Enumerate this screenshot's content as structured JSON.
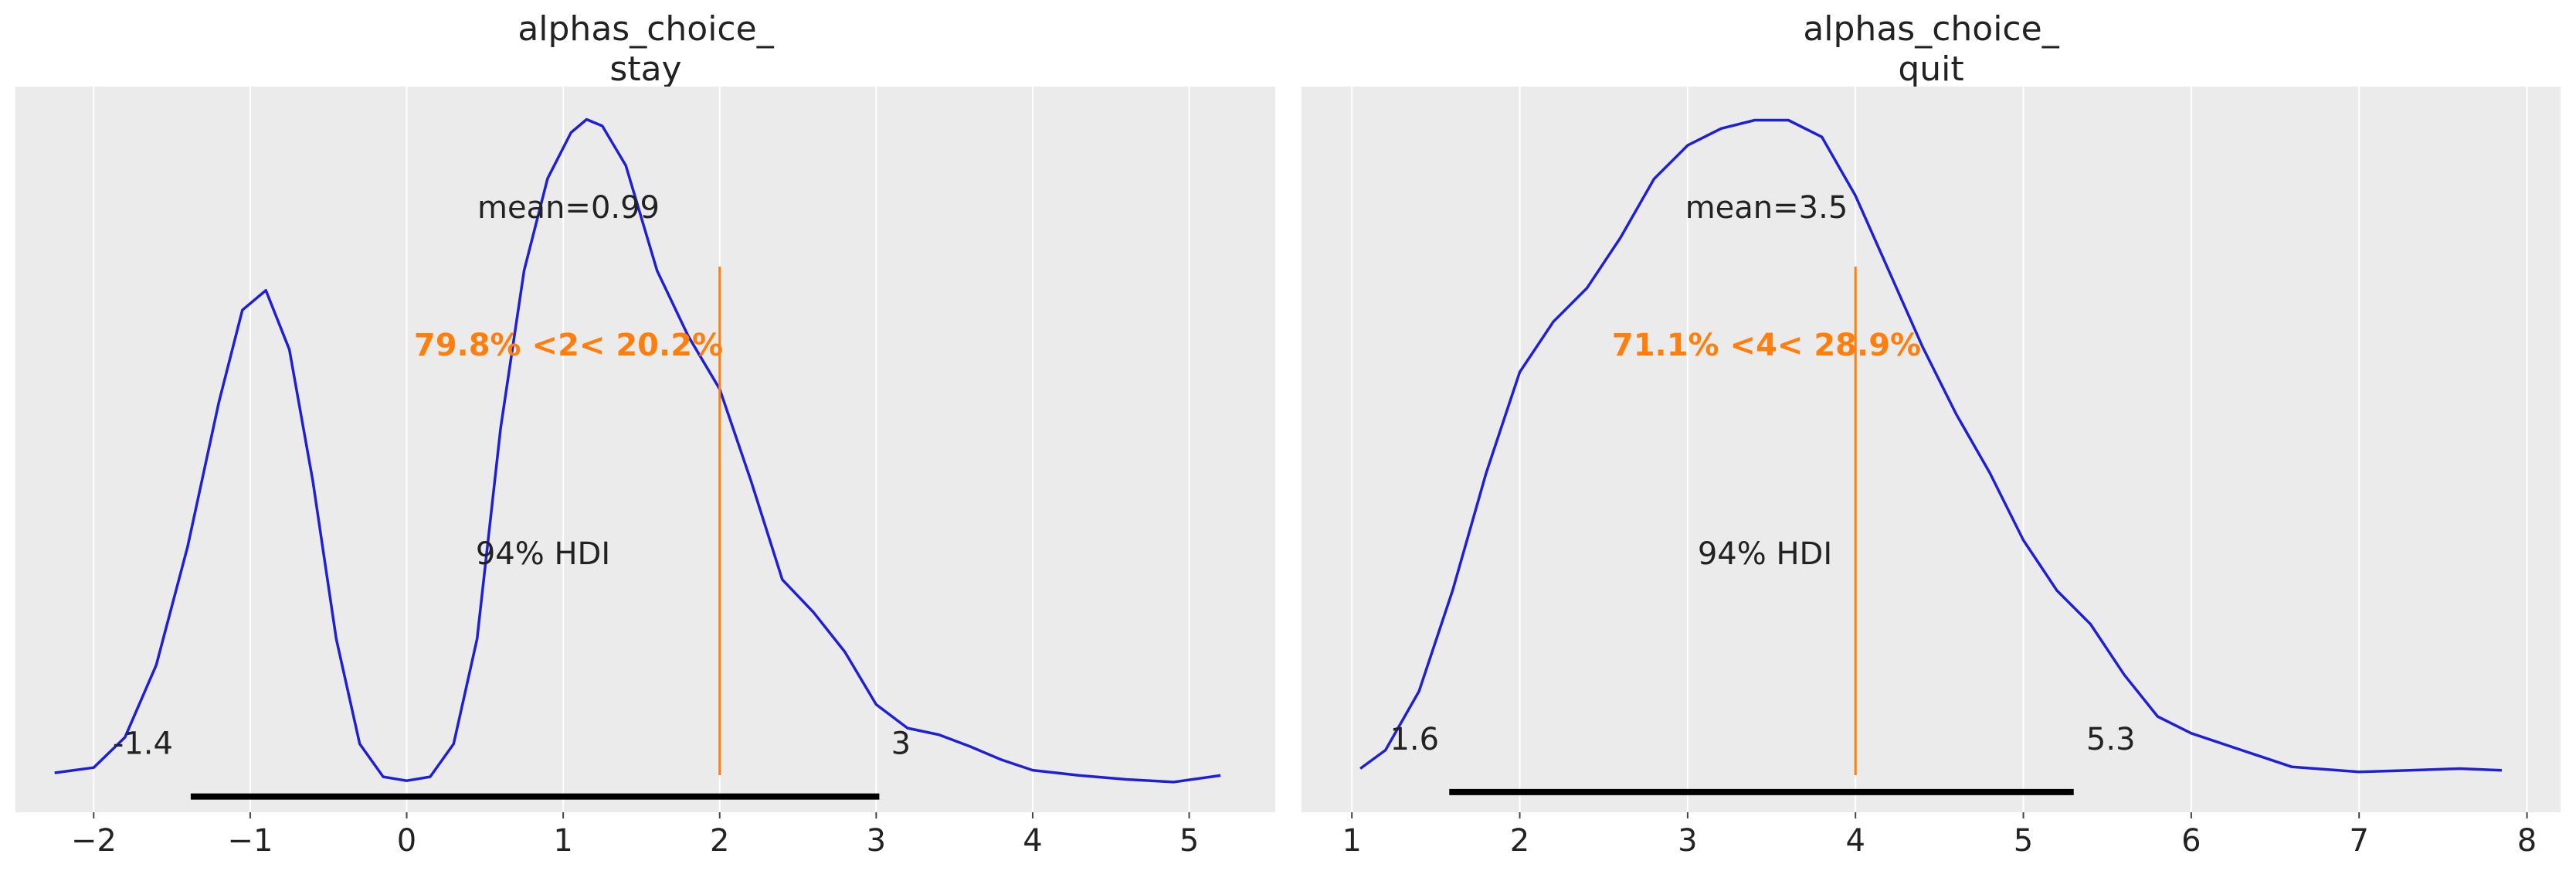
{
  "chart_data": [
    {
      "type": "line",
      "title_line1": "alphas_choice_",
      "title_line2": "stay",
      "xlim": [
        -2.5,
        5.55
      ],
      "ylim": [
        -0.012,
        0.54
      ],
      "xticks": [
        -2,
        -1,
        0,
        1,
        2,
        3,
        4,
        5
      ],
      "xtick_labels": [
        "−2",
        "−1",
        "0",
        "1",
        "2",
        "3",
        "4",
        "5"
      ],
      "grid": true,
      "line_color": "#1f1fd6",
      "ref_color": "#ff7f0e",
      "density_points": [
        [
          -2.25,
          0.018
        ],
        [
          -2.0,
          0.022
        ],
        [
          -1.8,
          0.045
        ],
        [
          -1.6,
          0.1
        ],
        [
          -1.4,
          0.19
        ],
        [
          -1.2,
          0.3
        ],
        [
          -1.05,
          0.37
        ],
        [
          -0.9,
          0.385
        ],
        [
          -0.75,
          0.34
        ],
        [
          -0.6,
          0.24
        ],
        [
          -0.45,
          0.12
        ],
        [
          -0.3,
          0.04
        ],
        [
          -0.15,
          0.015
        ],
        [
          0.0,
          0.012
        ],
        [
          0.15,
          0.015
        ],
        [
          0.3,
          0.04
        ],
        [
          0.45,
          0.12
        ],
        [
          0.6,
          0.28
        ],
        [
          0.75,
          0.4
        ],
        [
          0.9,
          0.47
        ],
        [
          1.05,
          0.505
        ],
        [
          1.15,
          0.515
        ],
        [
          1.25,
          0.51
        ],
        [
          1.4,
          0.48
        ],
        [
          1.6,
          0.4
        ],
        [
          1.8,
          0.35
        ],
        [
          2.0,
          0.31
        ],
        [
          2.2,
          0.24
        ],
        [
          2.4,
          0.165
        ],
        [
          2.6,
          0.14
        ],
        [
          2.8,
          0.11
        ],
        [
          3.0,
          0.07
        ],
        [
          3.2,
          0.052
        ],
        [
          3.4,
          0.047
        ],
        [
          3.6,
          0.038
        ],
        [
          3.8,
          0.028
        ],
        [
          4.0,
          0.02
        ],
        [
          4.3,
          0.016
        ],
        [
          4.6,
          0.013
        ],
        [
          4.9,
          0.011
        ],
        [
          5.2,
          0.016
        ]
      ],
      "mean_label": "mean=0.99",
      "ref_value": 2,
      "ref_label": "79.8% <2< 20.2%",
      "hdi_label": "94% HDI",
      "hdi": [
        -1.38,
        3.02
      ],
      "hdi_low_label": "-1.4",
      "hdi_high_label": "3"
    },
    {
      "type": "line",
      "title_line1": "alphas_choice_",
      "title_line2": "quit",
      "xlim": [
        0.7,
        8.2
      ],
      "ylim": [
        -0.012,
        0.42
      ],
      "xticks": [
        1,
        2,
        3,
        4,
        5,
        6,
        7,
        8
      ],
      "xtick_labels": [
        "1",
        "2",
        "3",
        "4",
        "5",
        "6",
        "7",
        "8"
      ],
      "grid": true,
      "line_color": "#1f1fd6",
      "ref_color": "#ff7f0e",
      "density_points": [
        [
          1.05,
          0.014
        ],
        [
          1.2,
          0.025
        ],
        [
          1.4,
          0.06
        ],
        [
          1.6,
          0.12
        ],
        [
          1.8,
          0.19
        ],
        [
          2.0,
          0.25
        ],
        [
          2.2,
          0.28
        ],
        [
          2.4,
          0.3
        ],
        [
          2.6,
          0.33
        ],
        [
          2.8,
          0.365
        ],
        [
          3.0,
          0.385
        ],
        [
          3.2,
          0.395
        ],
        [
          3.4,
          0.4
        ],
        [
          3.6,
          0.4
        ],
        [
          3.8,
          0.39
        ],
        [
          4.0,
          0.355
        ],
        [
          4.2,
          0.31
        ],
        [
          4.4,
          0.265
        ],
        [
          4.6,
          0.225
        ],
        [
          4.8,
          0.19
        ],
        [
          5.0,
          0.15
        ],
        [
          5.2,
          0.12
        ],
        [
          5.4,
          0.1
        ],
        [
          5.6,
          0.07
        ],
        [
          5.8,
          0.045
        ],
        [
          6.0,
          0.035
        ],
        [
          6.3,
          0.025
        ],
        [
          6.6,
          0.015
        ],
        [
          7.0,
          0.012
        ],
        [
          7.3,
          0.013
        ],
        [
          7.6,
          0.014
        ],
        [
          7.85,
          0.013
        ]
      ],
      "mean_label": "mean=3.5",
      "ref_value": 4,
      "ref_label": "71.1% <4< 28.9%",
      "hdi_label": "94% HDI",
      "hdi": [
        1.58,
        5.3
      ],
      "hdi_low_label": "1.6",
      "hdi_high_label": "5.3"
    }
  ]
}
